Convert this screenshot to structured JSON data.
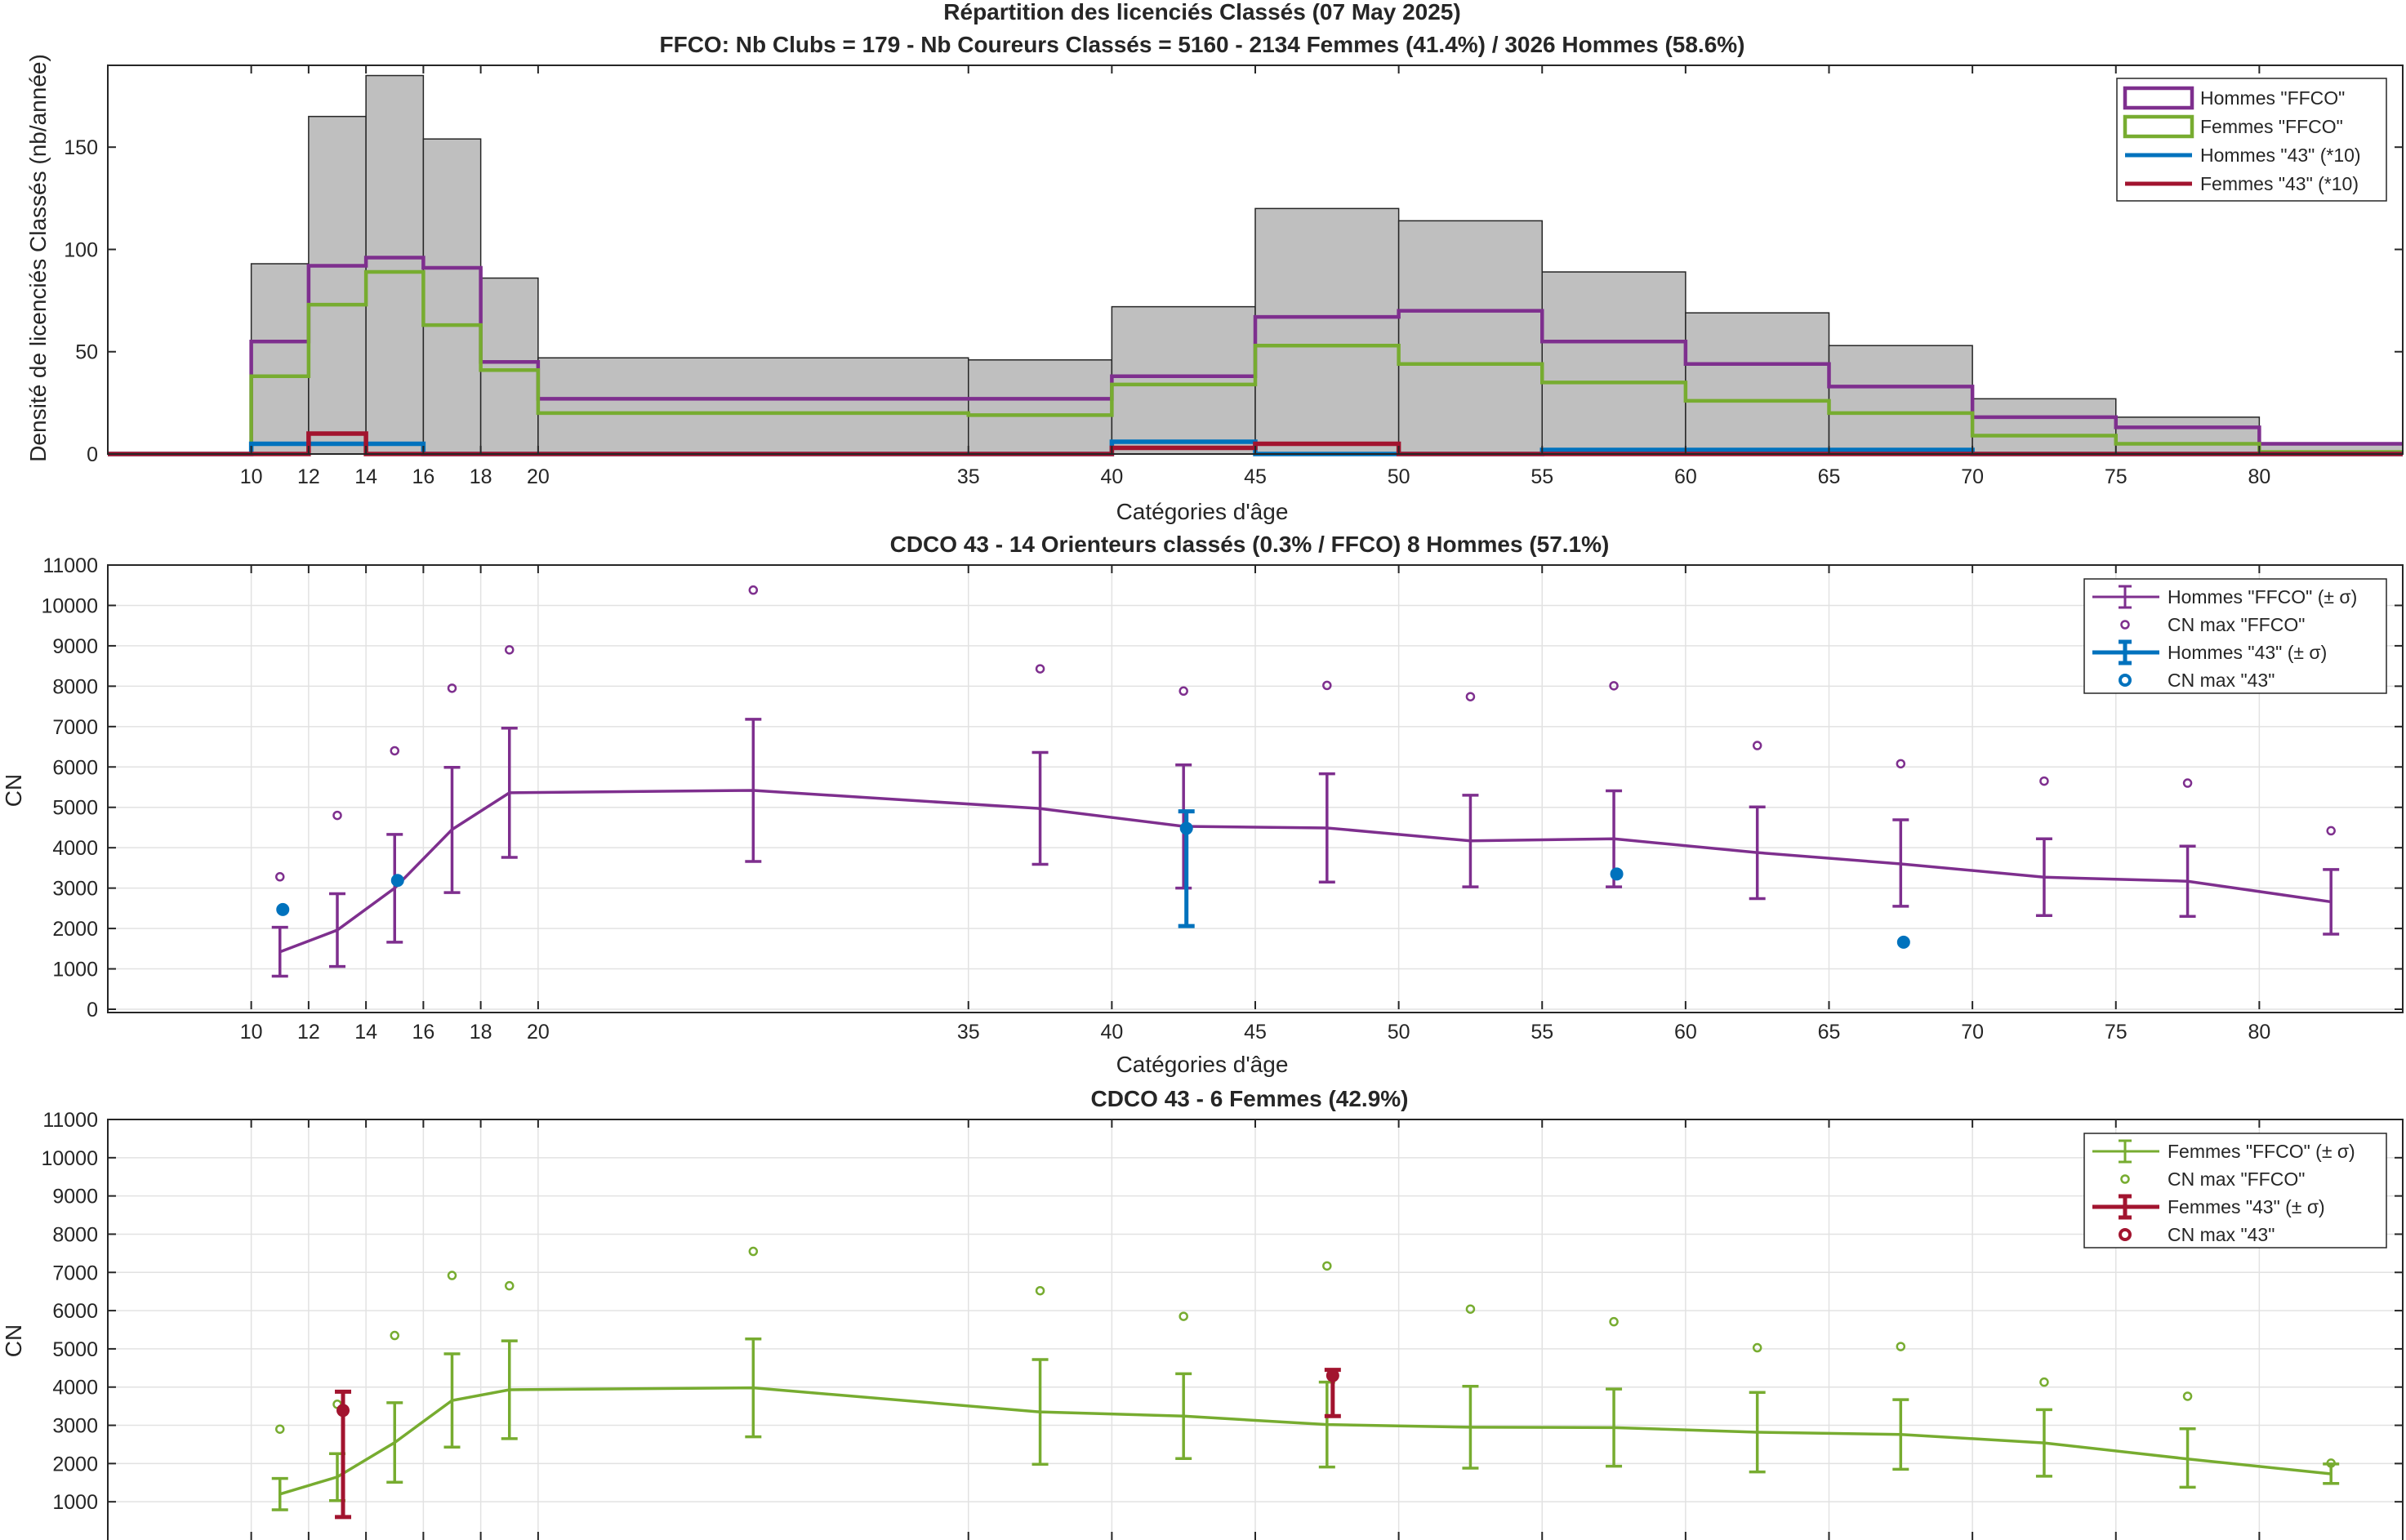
{
  "chart_data": [
    {
      "type": "bar",
      "title": "Répartition des licenciés Classés (07 May 2025)",
      "subtitle": "FFCO: Nb Clubs = 179   -   Nb Coureurs Classés = 5160   -   2134 Femmes (41.4%) / 3026 Hommes (58.6%)",
      "xlabel": "Catégories d'âge",
      "ylabel": "Densité de licenciés Classés (nb/année)",
      "xlim": [
        5,
        85
      ],
      "ylim": [
        0,
        190
      ],
      "xticks": [
        10,
        12,
        14,
        16,
        18,
        20,
        35,
        40,
        45,
        50,
        55,
        60,
        65,
        70,
        75,
        80
      ],
      "yticks": [
        0,
        50,
        100,
        150
      ],
      "bin_edges": [
        10,
        12,
        14,
        16,
        18,
        20,
        35,
        40,
        45,
        50,
        55,
        60,
        65,
        70,
        75,
        80,
        85
      ],
      "total_density": [
        93,
        165,
        185,
        154,
        86,
        47,
        46,
        72,
        120,
        114,
        89,
        69,
        53,
        27,
        18,
        5
      ],
      "series": [
        {
          "name": "Hommes \"FFCO\"",
          "color": "#7e2f8e",
          "values": [
            55,
            92,
            96,
            91,
            45,
            27,
            27,
            38,
            67,
            70,
            55,
            44,
            33,
            18,
            13,
            5
          ]
        },
        {
          "name": "Femmes \"FFCO\"",
          "color": "#77ac30",
          "values": [
            38,
            73,
            89,
            63,
            41,
            20,
            19,
            34,
            53,
            44,
            35,
            26,
            20,
            9,
            5,
            1
          ]
        },
        {
          "name": "Hommes \"43\" (*10)",
          "color": "#0072bd",
          "values": [
            5,
            5,
            5,
            0,
            0,
            0,
            0,
            6,
            0,
            0,
            2,
            2,
            2,
            0,
            0,
            0
          ]
        },
        {
          "name": "Femmes \"43\" (*10)",
          "color": "#a2142f",
          "values": [
            0,
            10,
            0,
            0,
            0,
            0,
            0,
            3,
            5,
            0,
            0,
            0,
            0,
            0,
            0,
            0
          ]
        }
      ],
      "legend": "top-right",
      "grid": false
    },
    {
      "type": "line",
      "title": "CDCO 43  -  14 Orienteurs classés (0.3% / FFCO)  8 Hommes (57.1%)",
      "xlabel": "Catégories d'âge",
      "ylabel": "CN",
      "xlim": [
        5,
        85
      ],
      "ylim": [
        0,
        11000
      ],
      "xticks": [
        10,
        12,
        14,
        16,
        18,
        20,
        35,
        40,
        45,
        50,
        55,
        60,
        65,
        70,
        75,
        80
      ],
      "yticks": [
        0,
        1000,
        2000,
        3000,
        4000,
        5000,
        6000,
        7000,
        8000,
        9000,
        10000,
        11000
      ],
      "grid": true,
      "legend": "top-right",
      "series": [
        {
          "name": "Hommes \"FFCO\" (± σ)",
          "color": "#7e2f8e",
          "kind": "errorbar-line",
          "x": [
            11,
            13,
            15,
            17,
            19,
            27.5,
            37.5,
            42.5,
            47.5,
            52.5,
            57.5,
            62.5,
            67.5,
            72.5,
            77.5,
            82.5
          ],
          "y": [
            1420,
            1960,
            3000,
            4450,
            5360,
            5420,
            4970,
            4530,
            4490,
            4170,
            4220,
            3880,
            3600,
            3270,
            3170,
            2660
          ],
          "lower": [
            820,
            1060,
            1660,
            2890,
            3760,
            3660,
            3590,
            3000,
            3150,
            3030,
            3030,
            2740,
            2550,
            2320,
            2300,
            1860
          ],
          "upper": [
            2030,
            2860,
            4330,
            5990,
            6960,
            7180,
            6360,
            6050,
            5830,
            5300,
            5410,
            5010,
            4690,
            4220,
            4040,
            3460
          ]
        },
        {
          "name": "CN max \"FFCO\"",
          "color": "#7e2f8e",
          "kind": "open-marker",
          "x": [
            11,
            13,
            15,
            17,
            19,
            27.5,
            37.5,
            42.5,
            47.5,
            52.5,
            57.5,
            62.5,
            67.5,
            72.5,
            77.5,
            82.5
          ],
          "y": [
            3280,
            4800,
            6400,
            7950,
            8900,
            10380,
            8430,
            7880,
            8020,
            7740,
            8010,
            6530,
            6080,
            5650,
            5600,
            4420
          ]
        },
        {
          "name": "Hommes \"43\" (± σ)",
          "color": "#0072bd",
          "kind": "errorbar",
          "x": [
            42.6
          ],
          "y": [
            4480
          ],
          "lower": [
            2060
          ],
          "upper": [
            4900
          ]
        },
        {
          "name": "CN max \"43\"",
          "color": "#0072bd",
          "kind": "filled-marker",
          "x": [
            11.1,
            15.1,
            42.6,
            57.6,
            67.6
          ],
          "y": [
            2470,
            3190,
            4480,
            3350,
            1660
          ]
        }
      ]
    },
    {
      "type": "line",
      "title": "CDCO 43  -  6 Femmes (42.9%)",
      "ylabel": "CN",
      "xlim": [
        5,
        85
      ],
      "ylim": [
        0,
        11000
      ],
      "yticks": [
        1000,
        2000,
        3000,
        4000,
        5000,
        6000,
        7000,
        8000,
        9000,
        10000,
        11000
      ],
      "grid": true,
      "legend": "top-right",
      "series": [
        {
          "name": "Femmes \"FFCO\" (± σ)",
          "color": "#77ac30",
          "kind": "errorbar-line",
          "x": [
            11,
            13,
            15,
            17,
            19,
            27.5,
            37.5,
            42.5,
            47.5,
            52.5,
            57.5,
            62.5,
            67.5,
            72.5,
            77.5,
            82.5
          ],
          "y": [
            1200,
            1650,
            2550,
            3650,
            3930,
            3980,
            3350,
            3240,
            3020,
            2950,
            2940,
            2820,
            2760,
            2540,
            2120,
            1730
          ],
          "lower": [
            790,
            1030,
            1510,
            2430,
            2650,
            2700,
            1980,
            2130,
            1910,
            1880,
            1930,
            1780,
            1850,
            1670,
            1380,
            1480
          ],
          "upper": [
            1610,
            2260,
            3590,
            4870,
            5210,
            5260,
            4720,
            4350,
            4130,
            4020,
            3950,
            3860,
            3670,
            3410,
            2910,
            1990
          ]
        },
        {
          "name": "CN max \"FFCO\"",
          "color": "#77ac30",
          "kind": "open-marker",
          "x": [
            11,
            13,
            15,
            17,
            19,
            27.5,
            37.5,
            42.5,
            47.5,
            52.5,
            57.5,
            62.5,
            67.5,
            72.5,
            77.5,
            82.5
          ],
          "y": [
            2900,
            3550,
            5350,
            6920,
            6650,
            7550,
            6520,
            5850,
            7170,
            6040,
            5710,
            5030,
            5060,
            4130,
            3760,
            2010
          ]
        },
        {
          "name": "Femmes \"43\" (± σ)",
          "color": "#a2142f",
          "kind": "errorbar",
          "x": [
            13.2,
            47.7
          ],
          "y": [
            3390,
            4300
          ],
          "lower": [
            600,
            3240
          ],
          "upper": [
            3880,
            4450
          ]
        },
        {
          "name": "CN max \"43\"",
          "color": "#a2142f",
          "kind": "filled-marker",
          "x": [
            13.2,
            47.7
          ],
          "y": [
            3390,
            4300
          ]
        }
      ]
    }
  ]
}
